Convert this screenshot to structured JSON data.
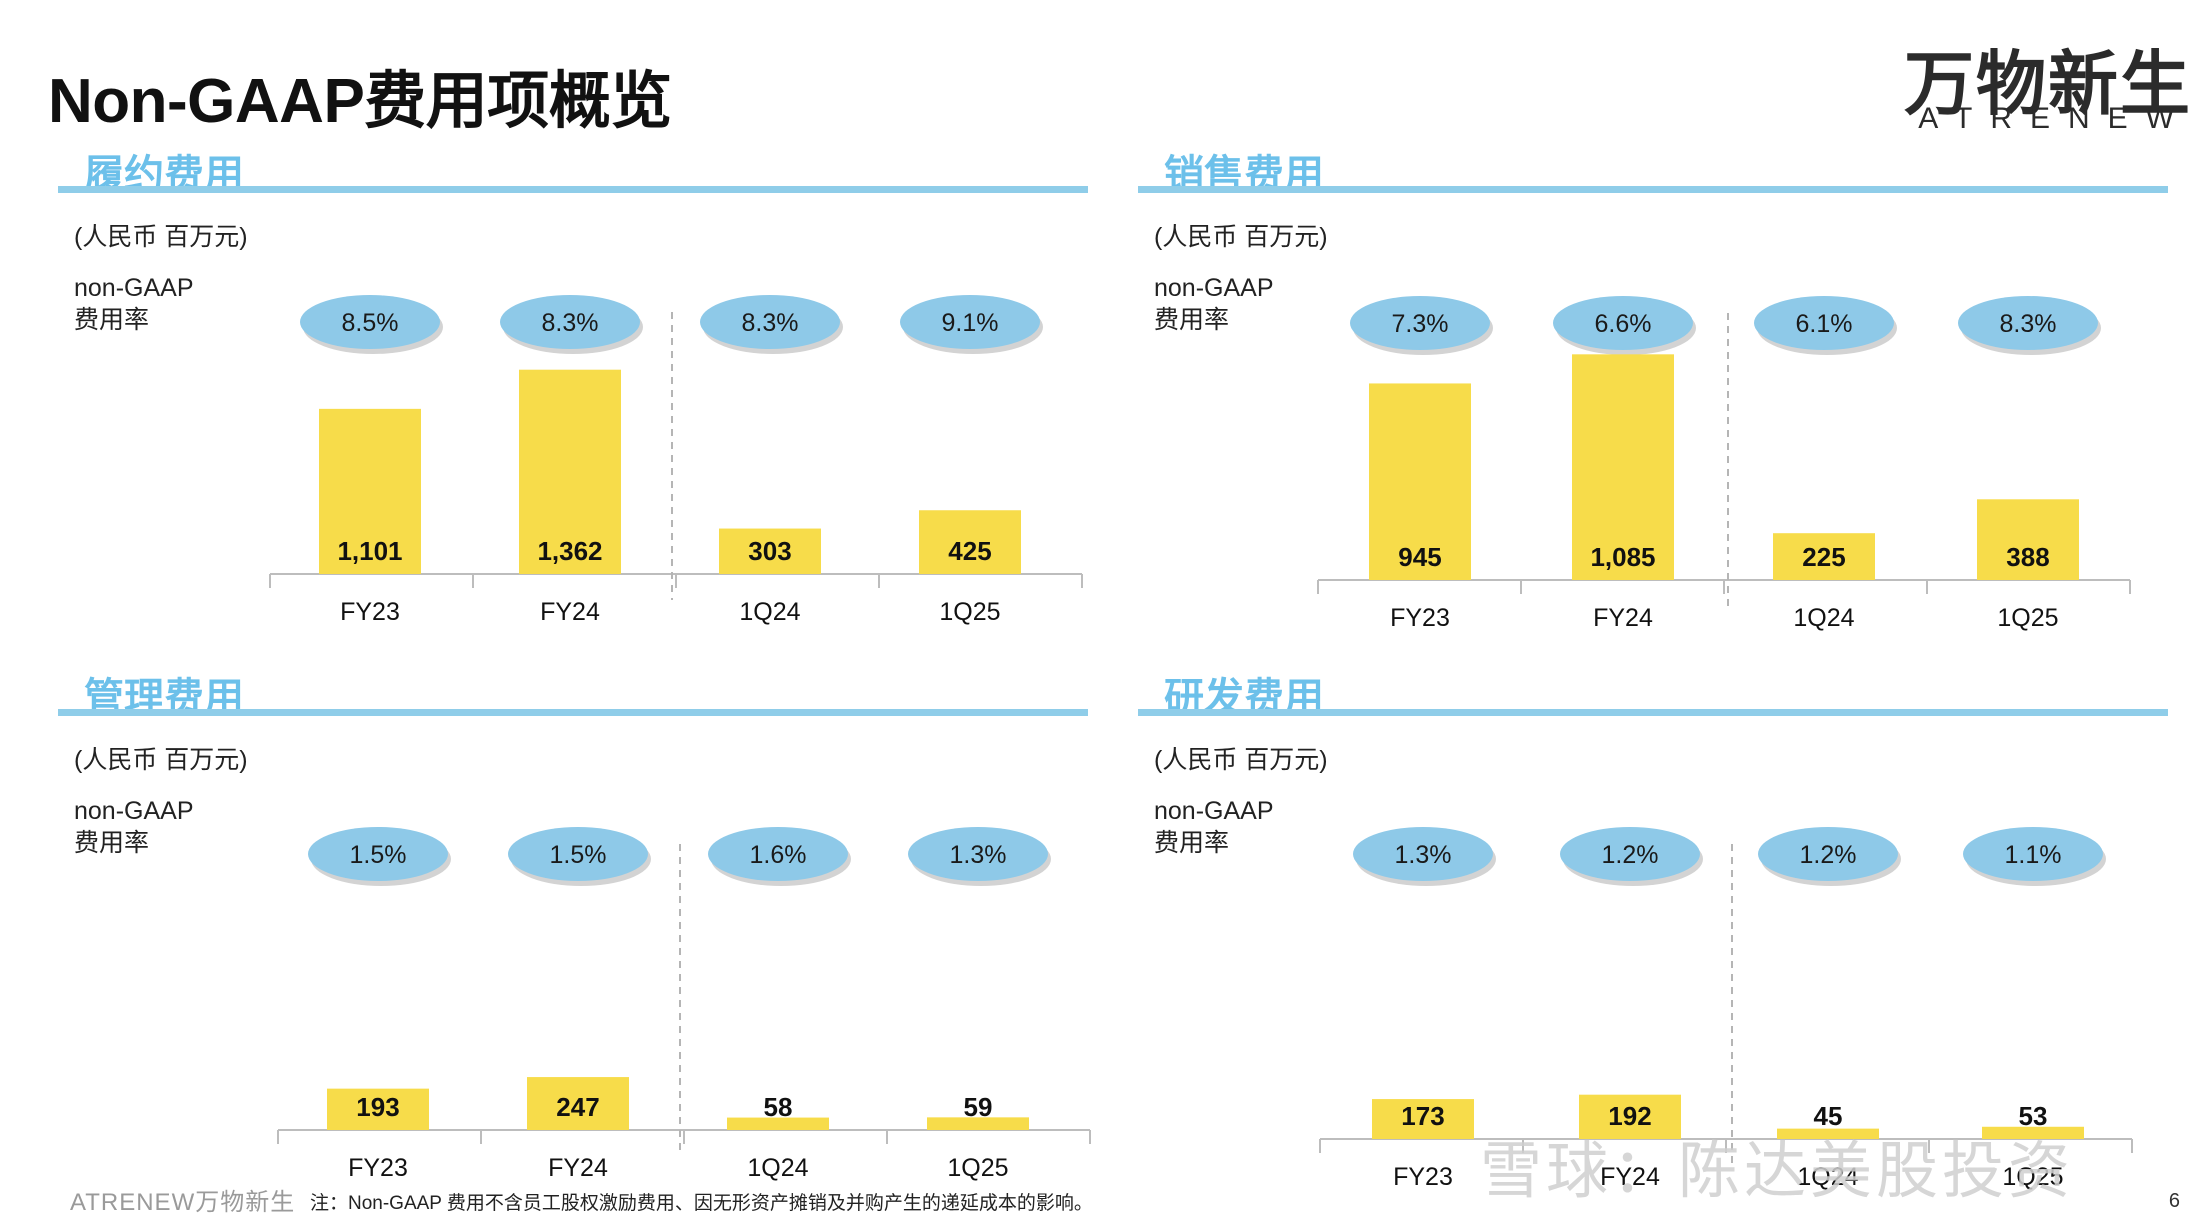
{
  "title": "Non-GAAP费用项概览",
  "logo": {
    "cn": "万物新生",
    "en": "ATRENEW"
  },
  "footnote": "注：Non-GAAP 费用不含员工股权激励费用、因无形资产摊销及并购产生的递延成本的影响。",
  "footer_brand": "ATRENEW万物新生",
  "page_number": "6",
  "watermark": "雪球：陈达美股投资",
  "colors": {
    "bar": "#f7dc4a",
    "ellipse": "#8ec9e8",
    "rule": "#8fcde9",
    "title": "#6cc0ea"
  },
  "chart_data": [
    {
      "type": "bar",
      "title": "履约费用",
      "unit": "(人民币 百万元)",
      "rate_label": "non-GAAP\n费用率",
      "categories": [
        "FY23",
        "FY24",
        "1Q24",
        "1Q25"
      ],
      "values": [
        1101,
        1362,
        303,
        425
      ],
      "value_labels": [
        "1,101",
        "1,362",
        "303",
        "425"
      ],
      "rates": [
        "8.5%",
        "8.3%",
        "8.3%",
        "9.1%"
      ],
      "ylim": [
        0,
        2000
      ]
    },
    {
      "type": "bar",
      "title": "销售费用",
      "unit": "(人民币 百万元)",
      "rate_label": "non-GAAP\n费用率",
      "categories": [
        "FY23",
        "FY24",
        "1Q24",
        "1Q25"
      ],
      "values": [
        945,
        1085,
        225,
        388
      ],
      "value_labels": [
        "945",
        "1,085",
        "225",
        "388"
      ],
      "rates": [
        "7.3%",
        "6.6%",
        "6.1%",
        "8.3%"
      ],
      "ylim": [
        0,
        1500
      ]
    },
    {
      "type": "bar",
      "title": "管理费用",
      "unit": "(人民币 百万元)",
      "rate_label": "non-GAAP\n费用率",
      "categories": [
        "FY23",
        "FY24",
        "1Q24",
        "1Q25"
      ],
      "values": [
        193,
        247,
        58,
        59
      ],
      "value_labels": [
        "193",
        "247",
        "58",
        "59"
      ],
      "rates": [
        "1.5%",
        "1.5%",
        "1.6%",
        "1.3%"
      ],
      "ylim": [
        0,
        1400
      ]
    },
    {
      "type": "bar",
      "title": "研发费用",
      "unit": "(人民币 百万元)",
      "rate_label": "non-GAAP\n费用率",
      "categories": [
        "FY23",
        "FY24",
        "1Q24",
        "1Q25"
      ],
      "values": [
        173,
        192,
        45,
        53
      ],
      "value_labels": [
        "173",
        "192",
        "45",
        "53"
      ],
      "rates": [
        "1.3%",
        "1.2%",
        "1.2%",
        "1.1%"
      ],
      "ylim": [
        0,
        1300
      ]
    }
  ]
}
